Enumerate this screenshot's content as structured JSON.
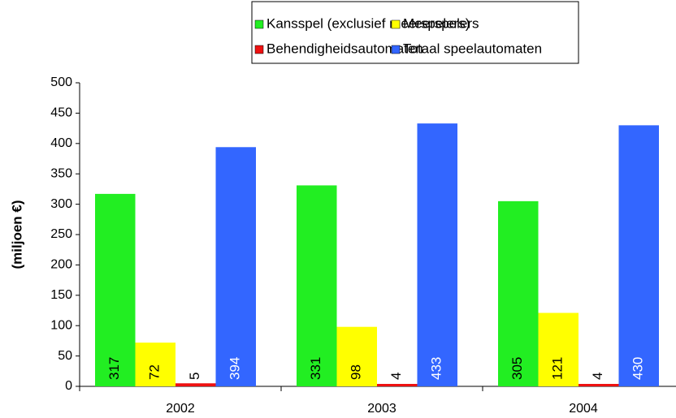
{
  "chart_data": {
    "type": "bar",
    "y_label": "(miljoen €)",
    "categories": [
      "2002",
      "2003",
      "2004"
    ],
    "series": [
      {
        "name": "Kansspel (exclusief meerspelers)",
        "color": "#22ee22",
        "label_color": "#000000",
        "values": [
          317,
          331,
          305
        ]
      },
      {
        "name": "Meerspelers",
        "color": "#ffff00",
        "label_color": "#000000",
        "values": [
          72,
          98,
          121
        ]
      },
      {
        "name": "Behendigheidsautomaten",
        "color": "#ee1111",
        "label_color": "#000000",
        "values": [
          5,
          4,
          4
        ]
      },
      {
        "name": "Totaal speelautomaten",
        "color": "#3366ff",
        "label_color": "#ffffff",
        "values": [
          394,
          433,
          430
        ]
      }
    ],
    "ylim": [
      0,
      500
    ],
    "yticks": [
      0,
      50,
      100,
      150,
      200,
      250,
      300,
      350,
      400,
      450,
      500
    ],
    "grid": false
  }
}
